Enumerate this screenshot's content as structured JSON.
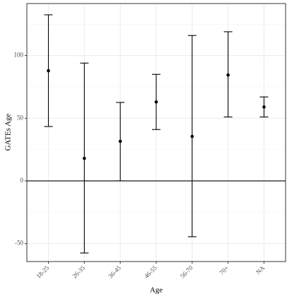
{
  "chart_data": {
    "type": "errorbar",
    "x_label": "Age",
    "y_label": "GATEs Age",
    "categories": [
      "18-25",
      "26-35",
      "36-45",
      "46-55",
      "56-70",
      "70+",
      "NA"
    ],
    "values": [
      87.9,
      18,
      31.6,
      63,
      35.5,
      84.5,
      59
    ],
    "lower": [
      43.4,
      -57.5,
      0,
      41,
      -44.5,
      51,
      51
    ],
    "upper": [
      132.5,
      94,
      62.6,
      85,
      116,
      119,
      67
    ],
    "color": "#000000",
    "ylim": [
      -64.3,
      141.5
    ],
    "yticks": [
      -50,
      0,
      50,
      100
    ],
    "minor_yticks": [
      -25,
      25,
      75,
      125
    ],
    "hline": 0,
    "grid": true
  }
}
